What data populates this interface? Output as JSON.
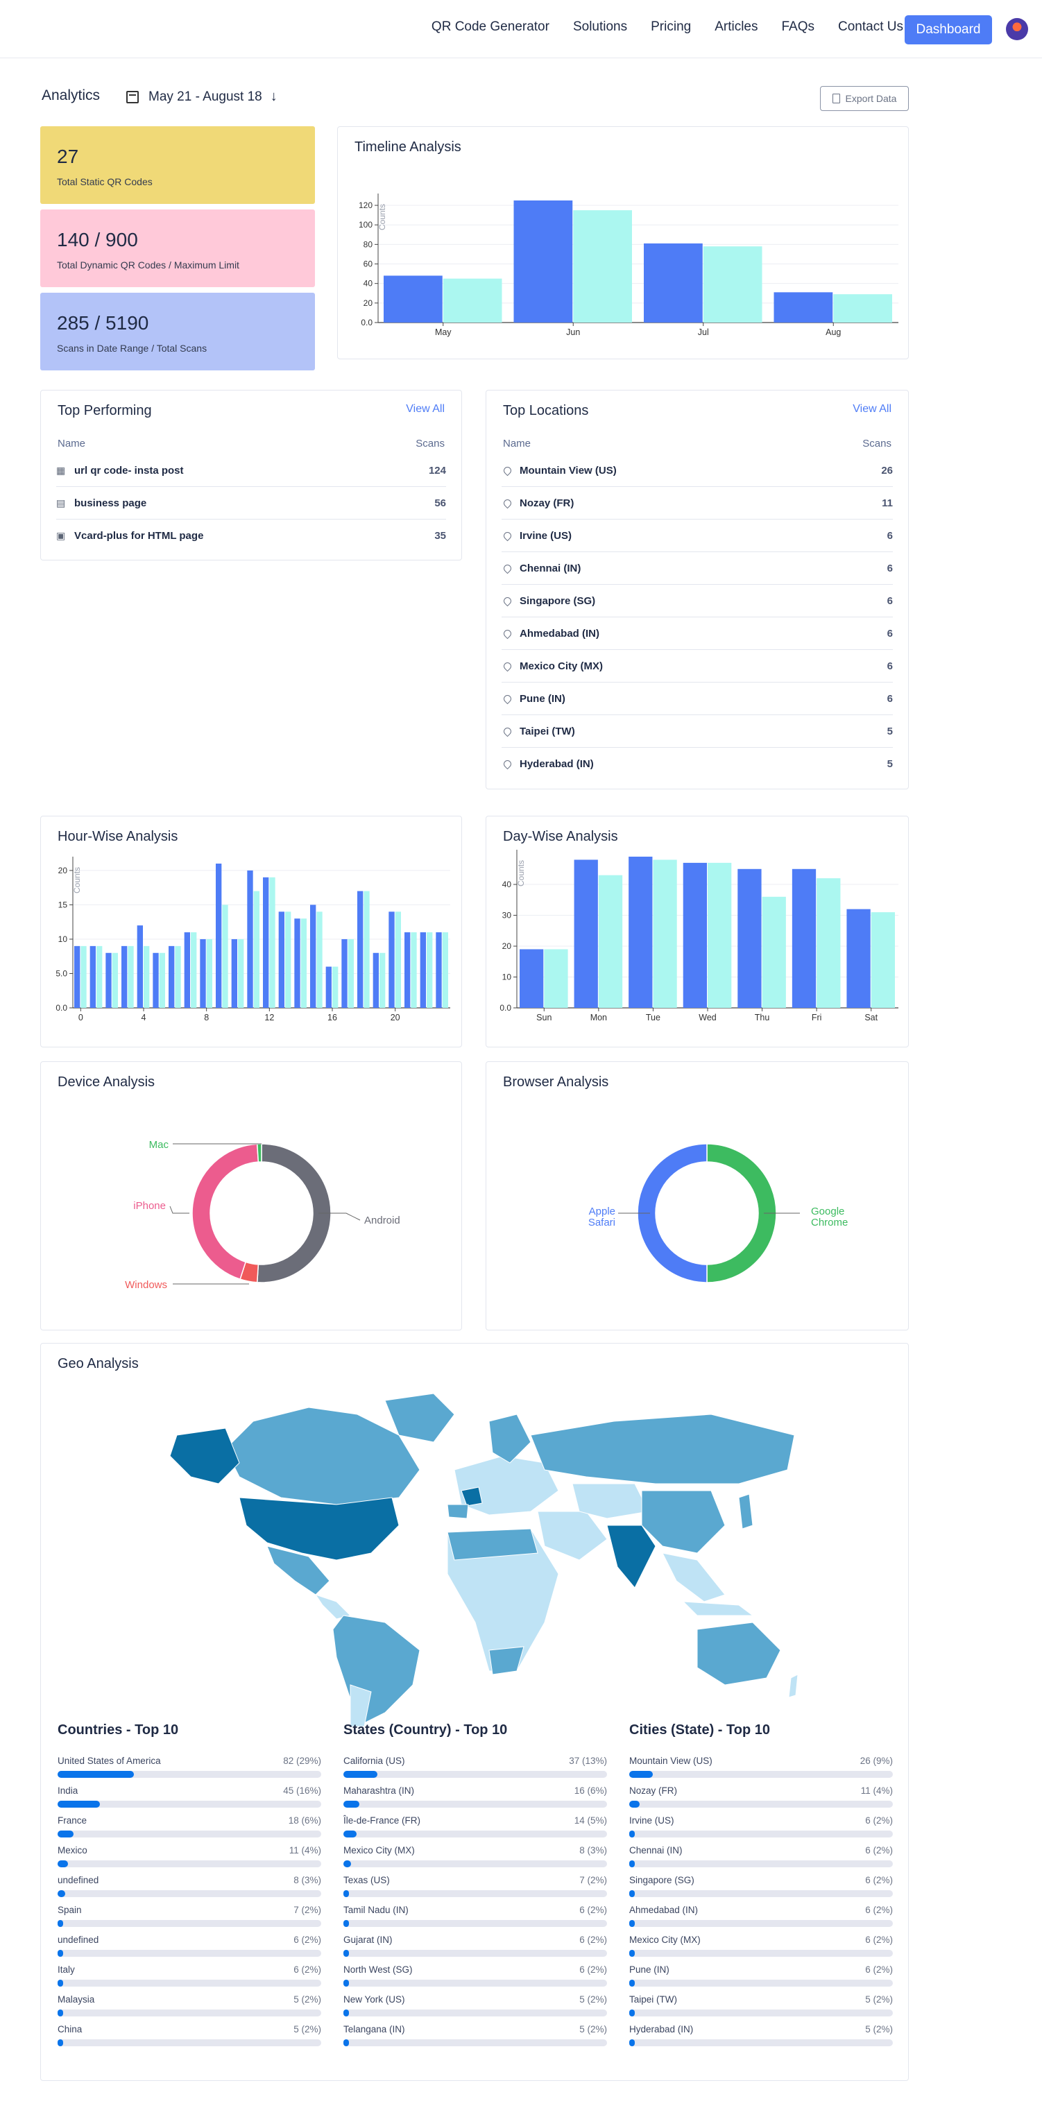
{
  "nav": {
    "links": [
      "QR Code Generator",
      "Solutions",
      "Pricing",
      "Articles",
      "FAQs",
      "Contact Us"
    ],
    "dashboard_label": "Dashboard"
  },
  "header": {
    "title": "Analytics",
    "date_range": "May 21 - August 18",
    "export_label": "Export Data"
  },
  "stats": [
    {
      "value": "27",
      "label": "Total Static QR Codes",
      "color": "#f0d977"
    },
    {
      "value": "140 / 900",
      "label": "Total Dynamic QR Codes / Maximum Limit",
      "color": "#ffc9d9"
    },
    {
      "value": "285 / 5190",
      "label": "Scans in Date Range / Total Scans",
      "color": "#b3c3f8"
    }
  ],
  "timeline": {
    "title": "Timeline Analysis",
    "chart_data": {
      "type": "bar",
      "categories": [
        "May",
        "Jun",
        "Jul",
        "Aug"
      ],
      "series": [
        {
          "values": [
            48,
            125,
            81,
            31
          ],
          "color": "#4e7cf6"
        },
        {
          "values": [
            45,
            115,
            78,
            29
          ],
          "color": "#abf7f0"
        }
      ],
      "ylabel": "Counts",
      "ylim": [
        0,
        125
      ],
      "yticks": [
        "0.0",
        "20",
        "40",
        "60",
        "80",
        "100",
        "120"
      ]
    }
  },
  "top_performing": {
    "title": "Top Performing",
    "view_all": "View All",
    "col_name": "Name",
    "col_scans": "Scans",
    "items": [
      {
        "icon": "qr-grid-icon",
        "name": "url qr code- insta post",
        "scans": "124"
      },
      {
        "icon": "building-icon",
        "name": "business page",
        "scans": "56"
      },
      {
        "icon": "vcard-icon",
        "name": "Vcard-plus for HTML page",
        "scans": "35"
      }
    ]
  },
  "top_locations": {
    "title": "Top Locations",
    "view_all": "View All",
    "col_name": "Name",
    "col_scans": "Scans",
    "items": [
      {
        "name": "Mountain View (US)",
        "scans": "26"
      },
      {
        "name": "Nozay (FR)",
        "scans": "11"
      },
      {
        "name": "Irvine (US)",
        "scans": "6"
      },
      {
        "name": "Chennai (IN)",
        "scans": "6"
      },
      {
        "name": "Singapore (SG)",
        "scans": "6"
      },
      {
        "name": "Ahmedabad (IN)",
        "scans": "6"
      },
      {
        "name": "Mexico City (MX)",
        "scans": "6"
      },
      {
        "name": "Pune (IN)",
        "scans": "6"
      },
      {
        "name": "Taipei (TW)",
        "scans": "5"
      },
      {
        "name": "Hyderabad (IN)",
        "scans": "5"
      }
    ]
  },
  "hour_wise": {
    "title": "Hour-Wise Analysis",
    "chart_data": {
      "type": "bar",
      "categories": [
        "0",
        "1",
        "2",
        "3",
        "4",
        "5",
        "6",
        "7",
        "8",
        "9",
        "10",
        "11",
        "12",
        "13",
        "14",
        "15",
        "16",
        "17",
        "18",
        "19",
        "20",
        "21",
        "22",
        "23"
      ],
      "series": [
        {
          "values": [
            9,
            9,
            8,
            9,
            12,
            8,
            9,
            11,
            10,
            21,
            10,
            20,
            19,
            14,
            13,
            15,
            6,
            10,
            17,
            8,
            14,
            11,
            11,
            11
          ],
          "color": "#4e7cf6"
        },
        {
          "values": [
            9,
            9,
            8,
            9,
            9,
            8,
            9,
            11,
            10,
            15,
            10,
            17,
            19,
            14,
            13,
            14,
            6,
            10,
            17,
            8,
            14,
            11,
            11,
            11
          ],
          "color": "#abf7f0"
        }
      ],
      "ylabel": "Counts",
      "ylim": [
        0,
        21
      ],
      "yticks": [
        "0.0",
        "5.0",
        "10",
        "15",
        "20"
      ],
      "xticks": [
        "0",
        "4",
        "8",
        "12",
        "16",
        "20"
      ]
    }
  },
  "day_wise": {
    "title": "Day-Wise Analysis",
    "chart_data": {
      "type": "bar",
      "categories": [
        "Sun",
        "Mon",
        "Tue",
        "Wed",
        "Thu",
        "Fri",
        "Sat"
      ],
      "series": [
        {
          "values": [
            19,
            48,
            49,
            47,
            45,
            45,
            32
          ],
          "color": "#4e7cf6"
        },
        {
          "values": [
            19,
            43,
            48,
            47,
            36,
            42,
            31
          ],
          "color": "#abf7f0"
        }
      ],
      "ylabel": "Counts",
      "ylim": [
        0,
        49
      ],
      "yticks": [
        "0.0",
        "10",
        "20",
        "30",
        "40"
      ]
    }
  },
  "device": {
    "title": "Device Analysis",
    "chart_data": {
      "type": "pie",
      "labels": [
        "Android",
        "Windows",
        "iPhone",
        "Mac"
      ],
      "values": [
        51,
        4,
        44,
        1
      ],
      "colors": [
        "#6b6d78",
        "#f05a5a",
        "#ec5c8e",
        "#3dbb60"
      ]
    }
  },
  "browser": {
    "title": "Browser Analysis",
    "chart_data": {
      "type": "pie",
      "labels": [
        "Google Chrome",
        "Apple Safari"
      ],
      "values": [
        50,
        50
      ],
      "colors": [
        "#3dbb60",
        "#4e7cf6"
      ]
    }
  },
  "geo": {
    "title": "Geo Analysis",
    "countries": {
      "title": "Countries - Top 10",
      "items": [
        {
          "name": "United States of America",
          "count": "82 (29%)",
          "pct": 29
        },
        {
          "name": "India",
          "count": "45 (16%)",
          "pct": 16
        },
        {
          "name": "France",
          "count": "18 (6%)",
          "pct": 6
        },
        {
          "name": "Mexico",
          "count": "11 (4%)",
          "pct": 4
        },
        {
          "name": "undefined",
          "count": "8 (3%)",
          "pct": 3
        },
        {
          "name": "Spain",
          "count": "7 (2%)",
          "pct": 2
        },
        {
          "name": "undefined",
          "count": "6 (2%)",
          "pct": 2
        },
        {
          "name": "Italy",
          "count": "6 (2%)",
          "pct": 2
        },
        {
          "name": "Malaysia",
          "count": "5 (2%)",
          "pct": 2
        },
        {
          "name": "China",
          "count": "5 (2%)",
          "pct": 2
        }
      ]
    },
    "states": {
      "title": "States (Country) - Top 10",
      "items": [
        {
          "name": "California (US)",
          "count": "37 (13%)",
          "pct": 13
        },
        {
          "name": "Maharashtra (IN)",
          "count": "16 (6%)",
          "pct": 6
        },
        {
          "name": "Île-de-France (FR)",
          "count": "14 (5%)",
          "pct": 5
        },
        {
          "name": "Mexico City (MX)",
          "count": "8 (3%)",
          "pct": 3
        },
        {
          "name": "Texas (US)",
          "count": "7 (2%)",
          "pct": 2
        },
        {
          "name": "Tamil Nadu (IN)",
          "count": "6 (2%)",
          "pct": 2
        },
        {
          "name": "Gujarat (IN)",
          "count": "6 (2%)",
          "pct": 2
        },
        {
          "name": "North West (SG)",
          "count": "6 (2%)",
          "pct": 2
        },
        {
          "name": "New York (US)",
          "count": "5 (2%)",
          "pct": 2
        },
        {
          "name": "Telangana (IN)",
          "count": "5 (2%)",
          "pct": 2
        }
      ]
    },
    "cities": {
      "title": "Cities (State) - Top 10",
      "items": [
        {
          "name": "Mountain View (US)",
          "count": "26 (9%)",
          "pct": 9
        },
        {
          "name": "Nozay (FR)",
          "count": "11 (4%)",
          "pct": 4
        },
        {
          "name": "Irvine (US)",
          "count": "6 (2%)",
          "pct": 2
        },
        {
          "name": "Chennai (IN)",
          "count": "6 (2%)",
          "pct": 2
        },
        {
          "name": "Singapore (SG)",
          "count": "6 (2%)",
          "pct": 2
        },
        {
          "name": "Ahmedabad (IN)",
          "count": "6 (2%)",
          "pct": 2
        },
        {
          "name": "Mexico City (MX)",
          "count": "6 (2%)",
          "pct": 2
        },
        {
          "name": "Pune (IN)",
          "count": "6 (2%)",
          "pct": 2
        },
        {
          "name": "Taipei (TW)",
          "count": "5 (2%)",
          "pct": 2
        },
        {
          "name": "Hyderabad (IN)",
          "count": "5 (2%)",
          "pct": 2
        }
      ]
    }
  }
}
